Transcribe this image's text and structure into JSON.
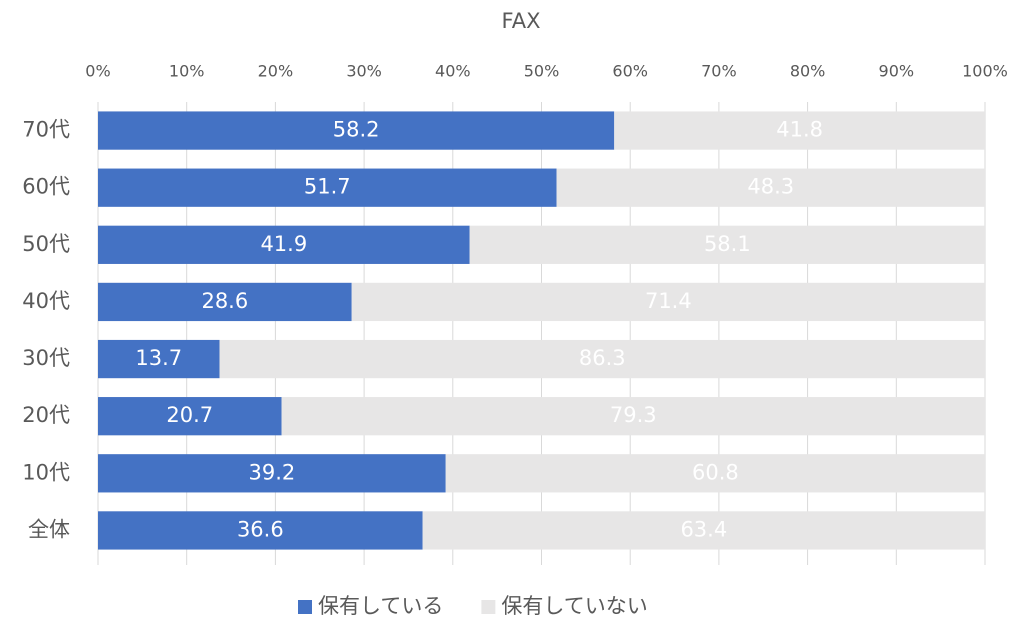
{
  "chart_data": {
    "type": "bar",
    "horizontal": true,
    "stacked": true,
    "title": "FAX",
    "categories": [
      "70代",
      "60代",
      "50代",
      "40代",
      "30代",
      "20代",
      "10代",
      "全体"
    ],
    "series": [
      {
        "name": "保有している",
        "color": "#4472c4",
        "values": [
          58.2,
          51.7,
          41.9,
          28.6,
          13.7,
          20.7,
          39.2,
          36.6
        ]
      },
      {
        "name": "保有していない",
        "color": "#e7e6e6",
        "values": [
          41.8,
          48.3,
          58.1,
          71.4,
          86.3,
          79.3,
          60.8,
          63.4
        ]
      }
    ],
    "xlim": [
      0,
      100
    ],
    "xticks": [
      {
        "value": 0,
        "label": "0%"
      },
      {
        "value": 10,
        "label": "10%"
      },
      {
        "value": 20,
        "label": "20%"
      },
      {
        "value": 30,
        "label": "30%"
      },
      {
        "value": 40,
        "label": "40%"
      },
      {
        "value": 50,
        "label": "50%"
      },
      {
        "value": 60,
        "label": "60%"
      },
      {
        "value": 70,
        "label": "70%"
      },
      {
        "value": 80,
        "label": "80%"
      },
      {
        "value": 90,
        "label": "90%"
      },
      {
        "value": 100,
        "label": "100%"
      }
    ],
    "grid": true,
    "legend": "bottom"
  }
}
